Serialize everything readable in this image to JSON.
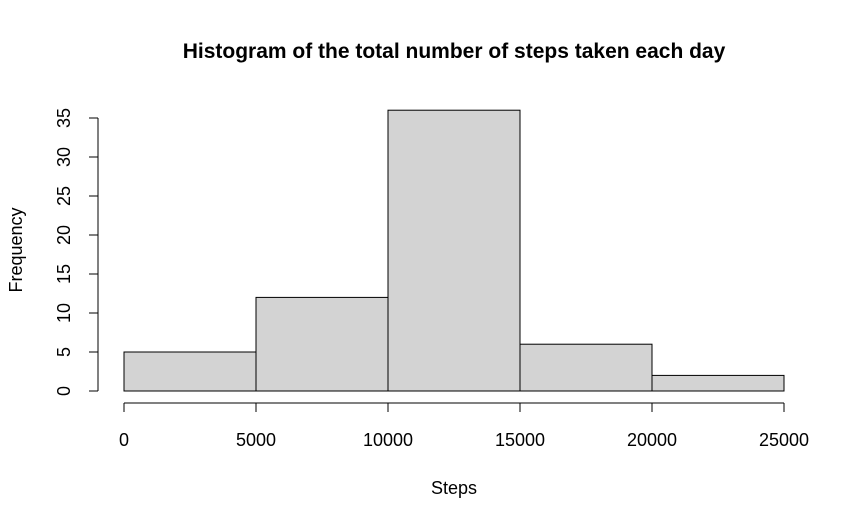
{
  "chart_data": {
    "type": "bar",
    "title": "Histogram of the total number of steps taken each day",
    "xlabel": "Steps",
    "ylabel": "Frequency",
    "bins": [
      {
        "from": 0,
        "to": 5000,
        "value": 5
      },
      {
        "from": 5000,
        "to": 10000,
        "value": 12
      },
      {
        "from": 10000,
        "to": 15000,
        "value": 36
      },
      {
        "from": 15000,
        "to": 20000,
        "value": 6
      },
      {
        "from": 20000,
        "to": 25000,
        "value": 2
      }
    ],
    "xlim": [
      0,
      25000
    ],
    "ylim": [
      0,
      35
    ],
    "xticks": [
      0,
      5000,
      10000,
      15000,
      20000,
      25000
    ],
    "yticks": [
      0,
      5,
      10,
      15,
      20,
      25,
      30,
      35
    ],
    "bar_color": "#d3d3d3",
    "grid": false,
    "legend": "none"
  }
}
